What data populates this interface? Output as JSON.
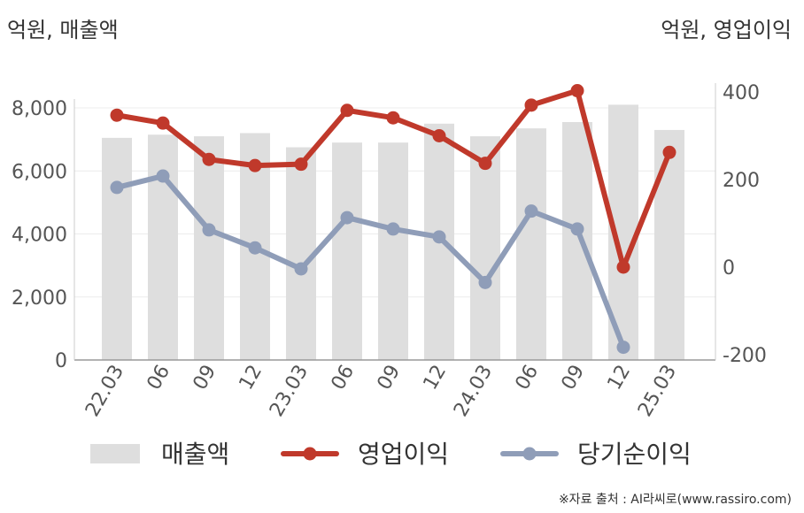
{
  "chart_data": {
    "type": "bar+line",
    "left_axis_unit": "억원, 매출액",
    "right_axis_unit": "억원, 영업이익",
    "source": "※자료 출처 : AI라씨로(www.rassiro.com)",
    "categories": [
      "22.03",
      "06",
      "09",
      "12",
      "23.03",
      "06",
      "09",
      "12",
      "24.03",
      "06",
      "09",
      "12",
      "25.03"
    ],
    "left_ylim": [
      0,
      8000
    ],
    "left_yticks": [
      "0",
      "2,000",
      "4,000",
      "6,000",
      "8,000"
    ],
    "right_ylim": [
      -200,
      400
    ],
    "right_yticks": [
      "-200",
      "0",
      "200",
      "400"
    ],
    "series": [
      {
        "name": "매출액",
        "type": "bar",
        "axis": "left",
        "color": "#dedede",
        "values": [
          7050,
          7150,
          7100,
          7200,
          6750,
          6900,
          6900,
          7500,
          7100,
          7350,
          7550,
          8100,
          7300
        ]
      },
      {
        "name": "영업이익",
        "type": "line",
        "axis": "right",
        "color": "#c0392b",
        "values": [
          347,
          329,
          246,
          232,
          235,
          358,
          341,
          300,
          237,
          370,
          403,
          0,
          262
        ]
      },
      {
        "name": "당기순이익",
        "type": "line",
        "axis": "right",
        "color": "#8f9db8",
        "values": [
          182,
          208,
          85,
          44,
          -4,
          113,
          87,
          69,
          -35,
          128,
          87,
          -183,
          null
        ]
      }
    ],
    "grid": true,
    "legend_position": "bottom"
  }
}
